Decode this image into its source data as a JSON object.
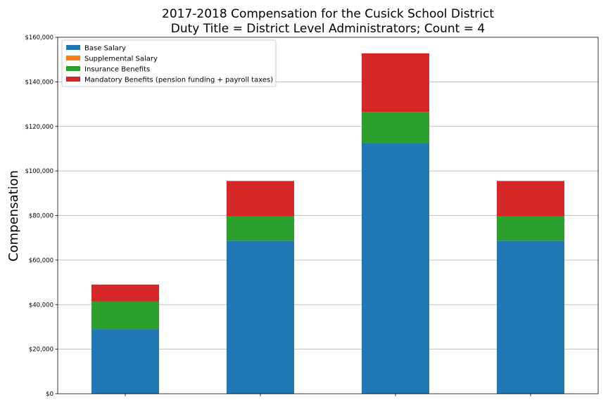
{
  "chart_data": {
    "type": "bar",
    "stacked": true,
    "title": "2017-2018 Compensation for the Cusick School District",
    "subtitle": "Duty Title = District Level Administrators; Count = 4",
    "xlabel": "",
    "ylabel": "Compensation",
    "ylim": [
      0,
      160000
    ],
    "yticks": [
      0,
      20000,
      40000,
      60000,
      80000,
      100000,
      120000,
      140000,
      160000
    ],
    "ytick_labels": [
      "$0",
      "$20,000",
      "$40,000",
      "$60,000",
      "$80,000",
      "$100,000",
      "$120,000",
      "$140,000",
      "$160,000"
    ],
    "categories": [
      "",
      "",
      "",
      ""
    ],
    "grid": "horizontal",
    "legend_position": "top-left",
    "series": [
      {
        "name": "Base Salary",
        "color": "#1f77b4",
        "values": [
          29000,
          68700,
          112500,
          68700
        ]
      },
      {
        "name": "Supplemental Salary",
        "color": "#ff7f0e",
        "values": [
          0,
          0,
          0,
          0
        ]
      },
      {
        "name": "Insurance Benefits",
        "color": "#2ca02c",
        "values": [
          12500,
          11000,
          14000,
          11000
        ]
      },
      {
        "name": "Mandatory Benefits (pension funding + payroll taxes)",
        "color": "#d62728",
        "values": [
          7500,
          15800,
          26300,
          15800
        ]
      }
    ]
  }
}
